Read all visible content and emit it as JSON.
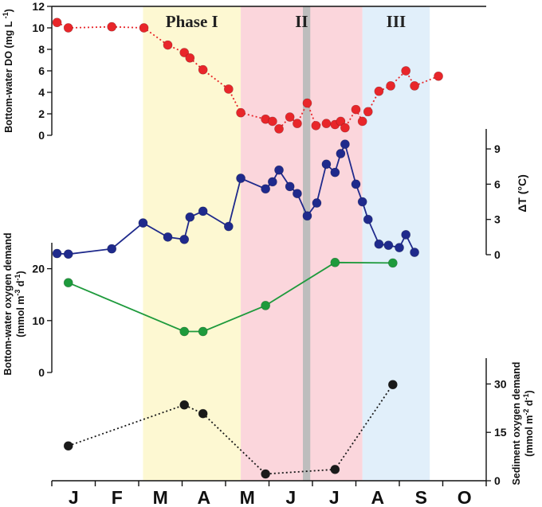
{
  "chart_data": {
    "type": "line",
    "x_months": [
      "J",
      "F",
      "M",
      "A",
      "M",
      "J",
      "J",
      "A",
      "S",
      "O"
    ],
    "x_unit": "month of year (1 = Jan)",
    "phases": [
      {
        "label": "Phase I",
        "start": 3.1,
        "end": 5.35,
        "color": "#fdf8d2"
      },
      {
        "label": "II",
        "start": 5.35,
        "end": 8.15,
        "color": "#fbd6dc"
      },
      {
        "label": "III",
        "start": 8.15,
        "end": 9.7,
        "color": "#e1effa"
      }
    ],
    "event_band": {
      "start": 6.78,
      "end": 6.95,
      "color": "#bdbdbd"
    },
    "panels": [
      {
        "id": "do",
        "ylabel": "Bottom-water DO (mg L",
        "ylabel_sup": "-1",
        "ylabel_tail": ")",
        "axis_side": "left",
        "ylim": [
          0,
          12
        ],
        "ticks": [
          "0",
          "2",
          "4",
          "6",
          "8",
          "10",
          "12"
        ],
        "color": "#e8262a",
        "style": "dotted",
        "x": [
          1.12,
          1.38,
          2.38,
          3.12,
          3.67,
          4.05,
          4.18,
          4.48,
          5.07,
          5.35,
          5.92,
          6.08,
          6.23,
          6.48,
          6.65,
          6.88,
          7.08,
          7.32,
          7.52,
          7.65,
          7.75,
          8.0,
          8.15,
          8.28,
          8.53,
          8.8,
          9.15,
          9.35,
          9.9
        ],
        "values": [
          10.5,
          10.0,
          10.1,
          10.0,
          8.4,
          7.7,
          7.2,
          6.1,
          4.3,
          2.1,
          1.5,
          1.3,
          0.6,
          1.7,
          1.1,
          3.0,
          0.9,
          1.1,
          1.0,
          1.3,
          0.7,
          2.4,
          1.3,
          2.2,
          4.1,
          4.6,
          6.0,
          4.6,
          5.5
        ]
      },
      {
        "id": "dt",
        "ylabel": "ΔT (°C)",
        "axis_side": "right",
        "ylim": [
          0,
          10.7
        ],
        "ticks": [
          "0",
          "3",
          "6",
          "9"
        ],
        "color": "#1f2a8c",
        "style": "solid",
        "x": [
          1.12,
          1.38,
          2.38,
          3.1,
          3.67,
          4.05,
          4.18,
          4.48,
          5.07,
          5.35,
          5.92,
          6.08,
          6.23,
          6.48,
          6.65,
          6.88,
          7.1,
          7.32,
          7.52,
          7.65,
          7.75,
          8.0,
          8.15,
          8.28,
          8.53,
          8.75,
          9.0,
          9.15,
          9.35
        ],
        "values": [
          0.1,
          0.05,
          0.5,
          2.7,
          1.5,
          1.3,
          3.2,
          3.7,
          2.4,
          6.5,
          5.6,
          6.2,
          7.2,
          5.8,
          5.2,
          3.3,
          4.4,
          7.7,
          7.0,
          8.6,
          9.4,
          6.0,
          4.5,
          3.0,
          0.9,
          0.8,
          0.6,
          1.7,
          0.2
        ]
      },
      {
        "id": "bwod",
        "ylabel": "Bottom-water oxygen demand",
        "ylabel2": "(mmol m",
        "ylabel2_sup": "-3",
        "ylabel2_mid": " d",
        "ylabel2_sup2": "-1",
        "ylabel2_tail": ")",
        "axis_side": "left",
        "ylim": [
          0,
          25
        ],
        "ticks": [
          "0",
          "10",
          "20"
        ],
        "color": "#1e9a3c",
        "style": "solid",
        "x": [
          1.38,
          4.05,
          4.48,
          5.92,
          7.52,
          8.85
        ],
        "values": [
          17.3,
          7.9,
          7.9,
          12.9,
          21.2,
          21.1
        ]
      },
      {
        "id": "sod",
        "ylabel": "Sediment oxygen demand",
        "ylabel2": "(mmol m",
        "ylabel2_sup": "-2",
        "ylabel2_mid": " d",
        "ylabel2_sup2": "-1",
        "ylabel2_tail": ")",
        "axis_side": "right",
        "ylim": [
          0,
          38
        ],
        "ticks": [
          "0",
          "15",
          "30"
        ],
        "color": "#1a1a1a",
        "style": "dotted",
        "x": [
          1.38,
          4.05,
          4.48,
          5.92,
          7.52,
          8.85
        ],
        "values": [
          10.8,
          23.5,
          20.8,
          2.1,
          3.5,
          29.8
        ]
      }
    ]
  }
}
